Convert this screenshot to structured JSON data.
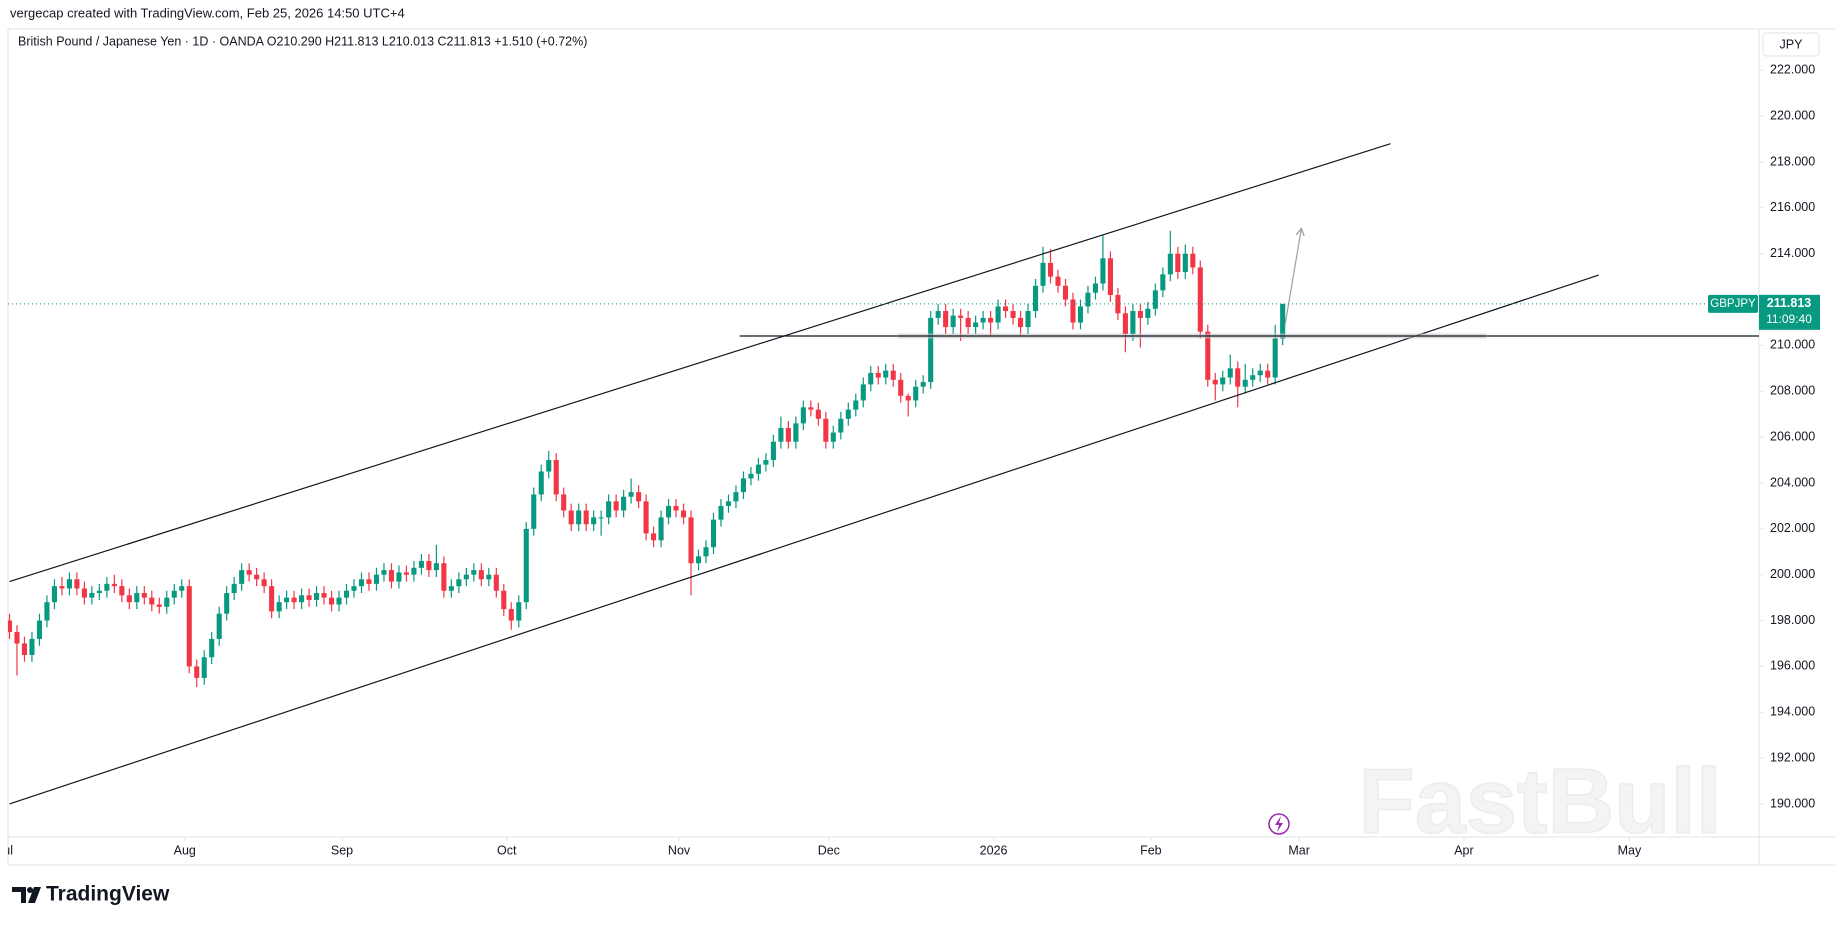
{
  "chart_data": {
    "type": "candlestick",
    "subtitle": "vergecap created with TradingView.com, Feb 25, 2026 14:50 UTC+4",
    "title": "British Pound / Japanese Yen · 1D · OANDA   O210.290  H211.813  L210.013  C211.813  +1.510 (+0.72%)",
    "currency": "JPY",
    "symbol": "GBPJPY",
    "countdown": "11:09:40",
    "last_price": 211.813,
    "watermark": "FastBull",
    "brand": "TradingView",
    "up_color": "#089981",
    "down_color": "#f23645",
    "open": [
      198.0,
      197.5,
      197.0,
      196.5,
      197.2,
      198.0,
      198.8,
      199.5,
      199.4,
      199.8,
      199.4,
      199.0,
      199.2,
      199.3,
      199.6,
      199.5,
      199.1,
      198.8,
      199.2,
      199.0,
      198.7,
      198.6,
      199.0,
      199.3,
      199.5,
      196.0,
      195.5,
      196.4,
      197.2,
      198.3,
      199.2,
      199.6,
      200.2,
      200.0,
      199.8,
      199.5,
      198.4,
      198.8,
      199.0,
      198.8,
      199.1,
      198.9,
      199.2,
      199.0,
      198.7,
      199.0,
      199.3,
      199.5,
      199.8,
      199.6,
      200.0,
      200.2,
      199.7,
      200.1,
      200.0,
      200.3,
      200.6,
      200.2,
      200.5,
      199.3,
      199.5,
      199.8,
      200.0,
      200.2,
      199.8,
      200.0,
      199.3,
      198.5,
      198.0,
      198.8,
      202.0,
      203.5,
      204.5,
      205.0,
      203.5,
      202.8,
      202.2,
      202.8,
      202.2,
      202.5,
      202.5,
      203.2,
      202.8,
      203.4,
      203.6,
      203.2,
      201.8,
      201.5,
      202.5,
      203.0,
      202.8,
      202.5,
      200.5,
      200.8,
      201.2,
      202.4,
      203.0,
      203.2,
      203.6,
      204.2,
      204.4,
      204.8,
      205.0,
      205.8,
      206.4,
      205.8,
      206.6,
      207.3,
      207.2,
      206.8,
      205.8,
      206.2,
      206.8,
      207.2,
      207.6,
      208.3,
      208.8,
      208.6,
      208.9,
      208.5,
      207.8,
      207.6,
      208.2,
      208.4,
      211.2,
      211.5,
      210.8,
      211.3,
      211.2,
      210.8,
      211.0,
      211.2,
      211.0,
      211.7,
      211.5,
      211.2,
      210.8,
      211.5,
      212.6,
      213.6,
      213.0,
      212.6,
      212.0,
      211.0,
      211.7,
      212.3,
      212.7,
      213.8,
      212.2,
      211.4,
      210.5,
      211.5,
      211.2,
      211.6,
      212.4,
      213.1,
      214.0,
      213.2,
      214.0,
      213.4,
      210.6,
      208.5,
      208.3,
      208.6,
      209.0,
      208.2,
      208.5,
      208.7,
      208.9,
      208.6,
      210.29
    ],
    "high": [
      198.3,
      197.8,
      197.3,
      197.5,
      198.3,
      199.1,
      199.8,
      199.9,
      200.1,
      200.1,
      199.7,
      199.5,
      199.6,
      199.9,
      200.0,
      199.8,
      199.4,
      199.5,
      199.5,
      199.3,
      199.0,
      199.3,
      199.6,
      199.8,
      199.8,
      196.3,
      196.7,
      197.5,
      198.6,
      199.5,
      199.9,
      200.5,
      200.5,
      200.3,
      200.1,
      199.8,
      199.1,
      199.3,
      199.3,
      199.4,
      199.4,
      199.5,
      199.5,
      199.3,
      199.3,
      199.6,
      199.8,
      200.1,
      200.1,
      200.3,
      200.5,
      200.5,
      200.4,
      200.4,
      200.6,
      200.9,
      200.9,
      201.3,
      200.8,
      199.8,
      200.1,
      200.3,
      200.5,
      200.5,
      200.3,
      200.3,
      199.6,
      198.8,
      199.1,
      202.3,
      203.8,
      204.8,
      205.4,
      205.3,
      203.8,
      203.1,
      203.1,
      203.1,
      202.8,
      202.8,
      203.5,
      203.5,
      203.7,
      204.2,
      203.9,
      203.5,
      202.1,
      202.8,
      203.3,
      203.3,
      203.1,
      202.8,
      201.1,
      201.5,
      202.7,
      203.3,
      203.5,
      203.9,
      204.5,
      204.7,
      205.1,
      205.3,
      206.1,
      206.9,
      206.7,
      206.9,
      207.6,
      207.6,
      207.5,
      207.1,
      206.5,
      207.1,
      207.5,
      207.9,
      208.6,
      209.1,
      209.1,
      209.2,
      209.2,
      208.8,
      207.9,
      208.5,
      208.7,
      211.5,
      211.8,
      211.8,
      211.6,
      211.6,
      211.5,
      211.3,
      211.5,
      211.5,
      212.0,
      212.0,
      211.8,
      211.5,
      211.8,
      212.9,
      214.3,
      214.2,
      213.3,
      212.9,
      212.3,
      212.0,
      212.6,
      213.0,
      214.8,
      214.1,
      212.5,
      211.7,
      211.8,
      211.8,
      211.9,
      212.7,
      213.4,
      215.0,
      214.3,
      214.4,
      214.3,
      213.7,
      210.9,
      208.8,
      208.9,
      209.6,
      209.3,
      209.2,
      209.0,
      209.2,
      209.2,
      210.9,
      211.813
    ],
    "low": [
      197.2,
      195.6,
      196.2,
      196.2,
      196.9,
      197.7,
      198.5,
      199.1,
      199.1,
      199.1,
      198.7,
      198.7,
      198.9,
      199.0,
      199.2,
      198.8,
      198.5,
      198.5,
      198.7,
      198.4,
      198.3,
      198.3,
      198.7,
      199.0,
      195.7,
      195.1,
      195.2,
      196.1,
      196.9,
      198.0,
      198.9,
      199.3,
      199.7,
      199.5,
      199.2,
      198.1,
      198.1,
      198.5,
      198.5,
      198.5,
      198.6,
      198.6,
      198.7,
      198.4,
      198.4,
      198.7,
      199.0,
      199.2,
      199.3,
      199.3,
      199.7,
      199.4,
      199.4,
      199.7,
      199.7,
      200.0,
      199.9,
      199.9,
      199.0,
      199.0,
      199.2,
      199.5,
      199.7,
      199.5,
      199.5,
      199.0,
      198.2,
      197.6,
      197.7,
      198.5,
      201.7,
      203.2,
      204.2,
      203.2,
      202.5,
      201.9,
      201.9,
      201.9,
      201.9,
      201.7,
      202.2,
      202.5,
      202.5,
      203.1,
      202.9,
      201.5,
      201.2,
      201.2,
      202.2,
      202.5,
      202.2,
      199.1,
      200.2,
      200.5,
      200.9,
      202.1,
      202.7,
      202.9,
      203.3,
      203.9,
      204.1,
      204.5,
      204.7,
      205.5,
      205.5,
      205.5,
      206.3,
      206.9,
      206.5,
      205.5,
      205.5,
      205.9,
      206.5,
      206.9,
      207.3,
      208.0,
      208.3,
      208.3,
      208.2,
      207.5,
      206.9,
      207.3,
      207.9,
      208.1,
      210.9,
      210.5,
      210.5,
      210.2,
      210.5,
      210.5,
      210.7,
      210.4,
      210.7,
      211.2,
      210.9,
      210.4,
      210.5,
      211.2,
      212.3,
      212.7,
      212.3,
      211.7,
      210.7,
      210.7,
      211.4,
      212.0,
      212.4,
      211.9,
      211.1,
      209.7,
      210.2,
      209.9,
      210.9,
      211.3,
      212.1,
      212.8,
      212.9,
      212.9,
      213.1,
      210.3,
      208.2,
      207.6,
      208.0,
      208.3,
      207.3,
      207.9,
      208.2,
      208.4,
      208.3,
      208.3,
      210.013
    ],
    "close": [
      197.5,
      197.0,
      196.5,
      197.2,
      198.0,
      198.8,
      199.5,
      199.4,
      199.8,
      199.4,
      199.0,
      199.2,
      199.3,
      199.6,
      199.5,
      199.1,
      198.8,
      199.2,
      199.0,
      198.7,
      198.6,
      199.0,
      199.3,
      199.5,
      196.0,
      195.5,
      196.4,
      197.2,
      198.3,
      199.2,
      199.6,
      200.2,
      200.0,
      199.8,
      199.5,
      198.4,
      198.8,
      199.0,
      198.8,
      199.1,
      198.9,
      199.2,
      199.0,
      198.7,
      199.0,
      199.3,
      199.5,
      199.8,
      199.6,
      200.0,
      200.2,
      199.7,
      200.1,
      200.0,
      200.3,
      200.6,
      200.2,
      200.5,
      199.3,
      199.5,
      199.8,
      200.0,
      200.2,
      199.8,
      200.0,
      199.3,
      198.5,
      198.0,
      198.8,
      202.0,
      203.5,
      204.5,
      205.0,
      203.5,
      202.8,
      202.2,
      202.8,
      202.2,
      202.5,
      202.5,
      203.2,
      202.8,
      203.4,
      203.6,
      203.2,
      201.8,
      201.5,
      202.5,
      203.0,
      202.8,
      202.5,
      200.5,
      200.8,
      201.2,
      202.4,
      203.0,
      203.2,
      203.6,
      204.2,
      204.4,
      204.8,
      205.0,
      205.8,
      206.4,
      205.8,
      206.6,
      207.3,
      207.2,
      206.8,
      205.8,
      206.2,
      206.8,
      207.2,
      207.6,
      208.3,
      208.8,
      208.6,
      208.9,
      208.5,
      207.8,
      207.6,
      208.2,
      208.4,
      211.2,
      211.5,
      210.8,
      211.3,
      211.2,
      210.8,
      211.0,
      211.2,
      211.0,
      211.7,
      211.5,
      211.2,
      210.8,
      211.5,
      212.6,
      213.6,
      213.0,
      212.6,
      212.0,
      211.0,
      211.7,
      212.3,
      212.7,
      213.8,
      212.2,
      211.4,
      210.5,
      211.5,
      211.2,
      211.6,
      212.4,
      213.1,
      214.0,
      213.2,
      214.0,
      213.4,
      210.6,
      208.5,
      208.3,
      208.6,
      209.0,
      208.2,
      208.5,
      208.7,
      208.9,
      208.6,
      210.3,
      211.813
    ],
    "xlim": [
      -0.2,
      233.6
    ],
    "xticks": [
      {
        "value": -0.6,
        "label": "Jul"
      },
      {
        "value": 23.4,
        "label": "Aug"
      },
      {
        "value": 44.4,
        "label": "Sep"
      },
      {
        "value": 66.4,
        "label": "Oct"
      },
      {
        "value": 89.4,
        "label": "Nov"
      },
      {
        "value": 109.4,
        "label": "Dec"
      },
      {
        "value": 131.4,
        "label": "2026"
      },
      {
        "value": 152.4,
        "label": "Feb"
      },
      {
        "value": 172.2,
        "label": "Mar"
      },
      {
        "value": 194.2,
        "label": "Apr"
      },
      {
        "value": 216.3,
        "label": "May"
      }
    ],
    "ylim": [
      188.56,
      223.8
    ],
    "yticks": [
      {
        "value": 190,
        "label": "190.000"
      },
      {
        "value": 192,
        "label": "192.000"
      },
      {
        "value": 194,
        "label": "194.000"
      },
      {
        "value": 196,
        "label": "196.000"
      },
      {
        "value": 198,
        "label": "198.000"
      },
      {
        "value": 200,
        "label": "200.000"
      },
      {
        "value": 202,
        "label": "202.000"
      },
      {
        "value": 204,
        "label": "204.000"
      },
      {
        "value": 206,
        "label": "206.000"
      },
      {
        "value": 208,
        "label": "208.000"
      },
      {
        "value": 210,
        "label": "210.000"
      },
      {
        "value": 214,
        "label": "214.000"
      },
      {
        "value": 216,
        "label": "216.000"
      },
      {
        "value": 218,
        "label": "218.000"
      },
      {
        "value": 220,
        "label": "220.000"
      },
      {
        "value": 222,
        "label": "222.000"
      }
    ],
    "grid": false,
    "drawings": [
      {
        "kind": "trend",
        "color": "#131722",
        "x": [
          0,
          184.4
        ],
        "y": [
          199.7,
          218.8
        ]
      },
      {
        "kind": "trend",
        "color": "#131722",
        "x": [
          0,
          212.2
        ],
        "y": [
          190,
          213.07
        ]
      },
      {
        "kind": "band",
        "color": "#c4c4c4",
        "x": [
          118.6,
          197.2
        ],
        "y": [
          210.41,
          210.41
        ]
      },
      {
        "kind": "trend",
        "color": "#131722",
        "x": [
          97.5,
          233.6
        ],
        "y": [
          210.41,
          210.41
        ]
      },
      {
        "kind": "arrow",
        "color": "#a0a0a0",
        "x": [
          170.3,
          172.5
        ],
        "y": [
          210.87,
          215.1
        ]
      }
    ]
  }
}
